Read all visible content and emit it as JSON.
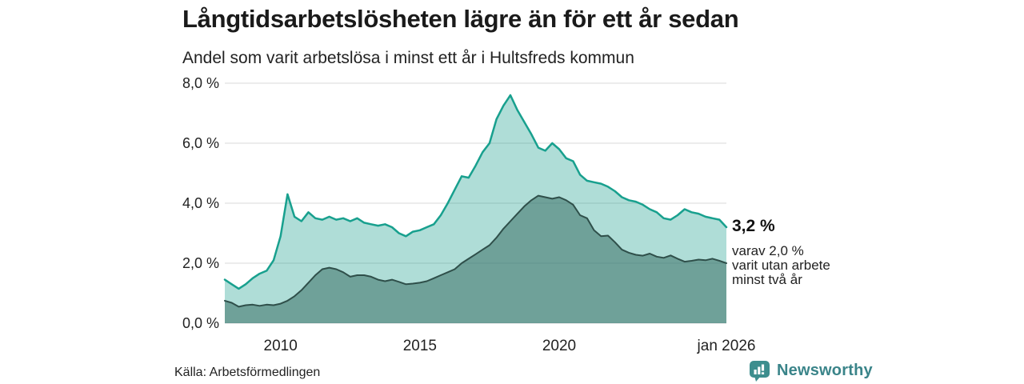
{
  "header": {
    "title": "Långtidsarbetslösheten lägre än för ett år sedan",
    "subtitle": "Andel som varit arbetslösa i minst ett år i Hultsfreds kommun"
  },
  "chart_data": {
    "type": "area",
    "title": "Långtidsarbetslösheten lägre än för ett år sedan",
    "subtitle": "Andel som varit arbetslösa i minst ett år i Hultsfreds kommun",
    "grid": true,
    "grid_color": "#d9d9d9",
    "axis_label_color": "#222222",
    "x_axis": {
      "range": [
        2008,
        2026
      ],
      "ticks": [
        {
          "x": 2010,
          "label": "2010"
        },
        {
          "x": 2015,
          "label": "2015"
        },
        {
          "x": 2020,
          "label": "2020"
        },
        {
          "x": 2026,
          "label": "jan 2026"
        }
      ]
    },
    "y_axis": {
      "range": [
        0,
        8
      ],
      "ticks": [
        {
          "v": 0,
          "label": "0,0 %"
        },
        {
          "v": 2,
          "label": "2,0 %"
        },
        {
          "v": 4,
          "label": "4,0 %"
        },
        {
          "v": 6,
          "label": "6,0 %"
        },
        {
          "v": 8,
          "label": "8,0 %"
        }
      ]
    },
    "x": [
      2008.0,
      2008.25,
      2008.5,
      2008.75,
      2009.0,
      2009.25,
      2009.5,
      2009.75,
      2010.0,
      2010.25,
      2010.5,
      2010.75,
      2011.0,
      2011.25,
      2011.5,
      2011.75,
      2012.0,
      2012.25,
      2012.5,
      2012.75,
      2013.0,
      2013.25,
      2013.5,
      2013.75,
      2014.0,
      2014.25,
      2014.5,
      2014.75,
      2015.0,
      2015.25,
      2015.5,
      2015.75,
      2016.0,
      2016.25,
      2016.5,
      2016.75,
      2017.0,
      2017.25,
      2017.5,
      2017.75,
      2018.0,
      2018.25,
      2018.5,
      2018.75,
      2019.0,
      2019.25,
      2019.5,
      2019.75,
      2020.0,
      2020.25,
      2020.5,
      2020.75,
      2021.0,
      2021.25,
      2021.5,
      2021.75,
      2022.0,
      2022.25,
      2022.5,
      2022.75,
      2023.0,
      2023.25,
      2023.5,
      2023.75,
      2024.0,
      2024.25,
      2024.5,
      2024.75,
      2025.0,
      2025.25,
      2025.5,
      2025.75,
      2026.0
    ],
    "series": [
      {
        "name": "Andel arbetslösa minst ett år",
        "line_color": "#18a08e",
        "fill_color": "rgba(26,158,141,0.35)",
        "line_width": 2.5,
        "values": [
          1.45,
          1.3,
          1.15,
          1.3,
          1.5,
          1.65,
          1.75,
          2.1,
          2.9,
          4.3,
          3.55,
          3.4,
          3.7,
          3.5,
          3.45,
          3.55,
          3.45,
          3.5,
          3.4,
          3.5,
          3.35,
          3.3,
          3.25,
          3.3,
          3.2,
          3.0,
          2.9,
          3.05,
          3.1,
          3.2,
          3.3,
          3.6,
          4.0,
          4.45,
          4.9,
          4.85,
          5.25,
          5.7,
          6.0,
          6.8,
          7.25,
          7.6,
          7.1,
          6.7,
          6.3,
          5.85,
          5.75,
          6.0,
          5.8,
          5.5,
          5.4,
          4.95,
          4.75,
          4.7,
          4.65,
          4.55,
          4.4,
          4.2,
          4.1,
          4.05,
          3.95,
          3.8,
          3.7,
          3.5,
          3.45,
          3.6,
          3.8,
          3.7,
          3.65,
          3.55,
          3.5,
          3.45,
          3.2
        ]
      },
      {
        "name": "Andel arbetslösa minst två år",
        "line_color": "#2f4f4a",
        "fill_color": "rgba(58,112,102,0.55)",
        "line_width": 2,
        "values": [
          0.75,
          0.68,
          0.55,
          0.6,
          0.62,
          0.58,
          0.62,
          0.6,
          0.65,
          0.75,
          0.9,
          1.1,
          1.35,
          1.6,
          1.8,
          1.85,
          1.8,
          1.7,
          1.55,
          1.6,
          1.6,
          1.55,
          1.45,
          1.4,
          1.45,
          1.38,
          1.3,
          1.32,
          1.35,
          1.4,
          1.5,
          1.6,
          1.7,
          1.8,
          2.0,
          2.15,
          2.3,
          2.45,
          2.6,
          2.85,
          3.15,
          3.4,
          3.65,
          3.9,
          4.1,
          4.25,
          4.2,
          4.15,
          4.2,
          4.1,
          3.95,
          3.6,
          3.5,
          3.1,
          2.9,
          2.92,
          2.7,
          2.45,
          2.35,
          2.28,
          2.25,
          2.32,
          2.22,
          2.18,
          2.26,
          2.15,
          2.05,
          2.08,
          2.12,
          2.1,
          2.15,
          2.08,
          2.0
        ]
      }
    ],
    "annotation": {
      "value_label": "3,2 %",
      "detail_lines": [
        "varav 2,0 %",
        "varit utan arbete",
        "minst två år"
      ]
    }
  },
  "footer": {
    "source": "Källa: Arbetsförmedlingen",
    "brand": "Newsworthy",
    "brand_color": "#3a8489"
  }
}
